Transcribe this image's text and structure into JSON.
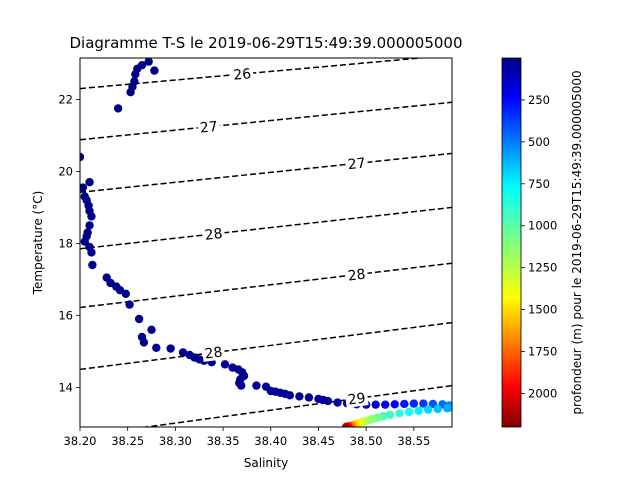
{
  "chart_data": {
    "type": "scatter",
    "title": "Diagramme T-S le 2019-06-29T15:49:39.000005000",
    "xlabel": "Salinity",
    "ylabel": "Temperature (°C)",
    "xlim": [
      38.2,
      38.59
    ],
    "ylim": [
      12.9,
      23.15
    ],
    "x_ticks": [
      38.2,
      38.25,
      38.3,
      38.35,
      38.4,
      38.45,
      38.5,
      38.55
    ],
    "x_tick_labels": [
      "38.20",
      "38.25",
      "38.30",
      "38.35",
      "38.40",
      "38.45",
      "38.50",
      "38.55"
    ],
    "y_ticks": [
      14,
      16,
      18,
      20,
      22
    ],
    "y_tick_labels": [
      "14",
      "16",
      "18",
      "20",
      "22"
    ],
    "grid": false,
    "colorbar": {
      "label": "profondeur (m) pour le 2019-06-29T15:49:39.000005000",
      "colormap": "jet",
      "reversed": true,
      "range": [
        0,
        2200
      ],
      "ticks": [
        250,
        500,
        750,
        1000,
        1250,
        1500,
        1750,
        2000
      ],
      "tick_labels": [
        "250",
        "500",
        "750",
        "1000",
        "1250",
        "1500",
        "1750",
        "2000"
      ]
    },
    "isopycnals": [
      {
        "label": "26",
        "s0": 38.2,
        "t0": 22.3,
        "s1": 38.59,
        "t1": 23.23,
        "label_s": 38.37
      },
      {
        "label": "27",
        "s0": 38.2,
        "t0": 20.88,
        "s1": 38.59,
        "t1": 21.92,
        "label_s": 38.335
      },
      {
        "label": "27",
        "s0": 38.2,
        "t0": 19.42,
        "s1": 38.59,
        "t1": 20.5,
        "label_s": 38.49
      },
      {
        "label": "28",
        "s0": 38.2,
        "t0": 17.85,
        "s1": 38.59,
        "t1": 19.0,
        "label_s": 38.34
      },
      {
        "label": "28",
        "s0": 38.2,
        "t0": 16.22,
        "s1": 38.59,
        "t1": 17.45,
        "label_s": 38.49
      },
      {
        "label": "28",
        "s0": 38.2,
        "t0": 14.5,
        "s1": 38.59,
        "t1": 15.8,
        "label_s": 38.34
      },
      {
        "label": "29",
        "s0": 38.2,
        "t0": 12.65,
        "s1": 38.59,
        "t1": 14.05,
        "label_s": 38.49
      }
    ],
    "series": [
      {
        "points": [
          [
            38.26,
            22.85,
            5
          ],
          [
            38.265,
            22.95,
            5
          ],
          [
            38.272,
            23.05,
            5
          ],
          [
            38.278,
            22.8,
            5
          ],
          [
            38.258,
            22.7,
            5
          ],
          [
            38.257,
            22.5,
            5
          ],
          [
            38.255,
            22.35,
            5
          ],
          [
            38.253,
            22.2,
            5
          ],
          [
            38.24,
            21.75,
            8
          ],
          [
            38.2,
            20.4,
            10
          ],
          [
            38.203,
            19.55,
            12
          ],
          [
            38.205,
            19.3,
            12
          ],
          [
            38.21,
            19.7,
            12
          ],
          [
            38.207,
            19.2,
            13
          ],
          [
            38.209,
            19.05,
            14
          ],
          [
            38.21,
            18.9,
            14
          ],
          [
            38.212,
            18.75,
            15
          ],
          [
            38.21,
            18.5,
            15
          ],
          [
            38.208,
            18.3,
            16
          ],
          [
            38.207,
            18.2,
            16
          ],
          [
            38.205,
            18.05,
            17
          ],
          [
            38.21,
            17.9,
            17
          ],
          [
            38.212,
            17.75,
            18
          ],
          [
            38.213,
            17.4,
            19
          ],
          [
            38.228,
            17.05,
            20
          ],
          [
            38.232,
            16.9,
            21
          ],
          [
            38.238,
            16.8,
            22
          ],
          [
            38.242,
            16.7,
            23
          ],
          [
            38.248,
            16.6,
            24
          ],
          [
            38.252,
            16.3,
            25
          ],
          [
            38.262,
            15.9,
            26
          ],
          [
            38.275,
            15.6,
            27
          ],
          [
            38.265,
            15.4,
            28
          ],
          [
            38.267,
            15.25,
            28
          ],
          [
            38.28,
            15.1,
            29
          ],
          [
            38.295,
            15.08,
            30
          ],
          [
            38.308,
            14.97,
            31
          ],
          [
            38.315,
            14.9,
            32
          ],
          [
            38.32,
            14.83,
            33
          ],
          [
            38.325,
            14.78,
            34
          ],
          [
            38.33,
            14.74,
            35
          ],
          [
            38.338,
            14.7,
            36
          ],
          [
            38.352,
            14.64,
            37
          ],
          [
            38.36,
            14.55,
            38
          ],
          [
            38.366,
            14.5,
            38
          ],
          [
            38.37,
            14.42,
            39
          ],
          [
            38.372,
            14.32,
            40
          ],
          [
            38.368,
            14.22,
            40
          ],
          [
            38.367,
            14.12,
            41
          ],
          [
            38.369,
            14.05,
            41
          ],
          [
            38.385,
            14.05,
            42
          ],
          [
            38.395,
            14.02,
            43
          ],
          [
            38.4,
            13.9,
            44
          ],
          [
            38.405,
            13.88,
            45
          ],
          [
            38.41,
            13.85,
            46
          ],
          [
            38.415,
            13.82,
            47
          ],
          [
            38.42,
            13.78,
            48
          ],
          [
            38.43,
            13.75,
            49
          ],
          [
            38.44,
            13.72,
            50
          ],
          [
            38.45,
            13.68,
            52
          ],
          [
            38.455,
            13.65,
            55
          ],
          [
            38.46,
            13.62,
            60
          ],
          [
            38.47,
            13.58,
            70
          ],
          [
            38.48,
            13.56,
            90
          ],
          [
            38.49,
            13.53,
            120
          ],
          [
            38.5,
            13.52,
            160
          ],
          [
            38.51,
            13.52,
            200
          ],
          [
            38.52,
            13.52,
            240
          ],
          [
            38.53,
            13.53,
            280
          ],
          [
            38.54,
            13.54,
            320
          ],
          [
            38.55,
            13.55,
            360
          ],
          [
            38.56,
            13.55,
            400
          ],
          [
            38.57,
            13.54,
            450
          ],
          [
            38.58,
            13.53,
            500
          ],
          [
            38.587,
            13.5,
            550
          ],
          [
            38.589,
            13.45,
            600
          ],
          [
            38.585,
            13.42,
            650
          ],
          [
            38.575,
            13.4,
            700
          ],
          [
            38.565,
            13.38,
            750
          ],
          [
            38.555,
            13.35,
            800
          ],
          [
            38.545,
            13.32,
            850
          ],
          [
            38.535,
            13.28,
            900
          ],
          [
            38.525,
            13.24,
            950
          ],
          [
            38.518,
            13.2,
            1000
          ],
          [
            38.512,
            13.16,
            1050
          ],
          [
            38.507,
            13.12,
            1100
          ],
          [
            38.503,
            13.09,
            1150
          ],
          [
            38.499,
            13.06,
            1200
          ],
          [
            38.496,
            13.04,
            1250
          ],
          [
            38.494,
            13.02,
            1300
          ],
          [
            38.492,
            13.0,
            1350
          ],
          [
            38.49,
            12.99,
            1400
          ],
          [
            38.489,
            12.97,
            1450
          ],
          [
            38.487,
            12.96,
            1500
          ],
          [
            38.486,
            12.95,
            1550
          ],
          [
            38.485,
            12.94,
            1600
          ],
          [
            38.484,
            12.93,
            1650
          ],
          [
            38.483,
            12.92,
            1700
          ],
          [
            38.482,
            12.92,
            1800
          ],
          [
            38.481,
            12.91,
            1900
          ],
          [
            38.48,
            12.91,
            2000
          ],
          [
            38.479,
            12.9,
            2100
          ]
        ]
      }
    ]
  }
}
